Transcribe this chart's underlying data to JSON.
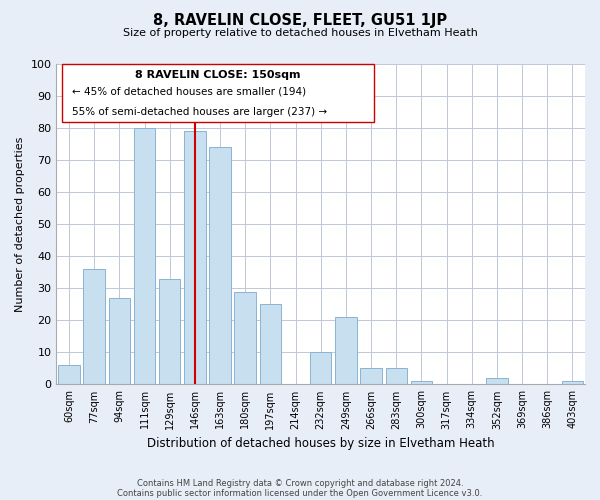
{
  "title": "8, RAVELIN CLOSE, FLEET, GU51 1JP",
  "subtitle": "Size of property relative to detached houses in Elvetham Heath",
  "xlabel": "Distribution of detached houses by size in Elvetham Heath",
  "ylabel": "Number of detached properties",
  "categories": [
    "60sqm",
    "77sqm",
    "94sqm",
    "111sqm",
    "129sqm",
    "146sqm",
    "163sqm",
    "180sqm",
    "197sqm",
    "214sqm",
    "232sqm",
    "249sqm",
    "266sqm",
    "283sqm",
    "300sqm",
    "317sqm",
    "334sqm",
    "352sqm",
    "369sqm",
    "386sqm",
    "403sqm"
  ],
  "values": [
    6,
    36,
    27,
    80,
    33,
    79,
    74,
    29,
    25,
    0,
    10,
    21,
    5,
    5,
    1,
    0,
    0,
    2,
    0,
    0,
    1
  ],
  "bar_color": "#c8dff0",
  "bar_edge_color": "#8ab4d4",
  "vline_index": 5,
  "vline_color": "#cc0000",
  "ylim": [
    0,
    100
  ],
  "yticks": [
    0,
    10,
    20,
    30,
    40,
    50,
    60,
    70,
    80,
    90,
    100
  ],
  "annotation_title": "8 RAVELIN CLOSE: 150sqm",
  "annotation_line1": "← 45% of detached houses are smaller (194)",
  "annotation_line2": "55% of semi-detached houses are larger (237) →",
  "footnote1": "Contains HM Land Registry data © Crown copyright and database right 2024.",
  "footnote2": "Contains public sector information licensed under the Open Government Licence v3.0.",
  "bg_color": "#e8eef8",
  "plot_bg_color": "#ffffff",
  "grid_color": "#c0c8d8"
}
